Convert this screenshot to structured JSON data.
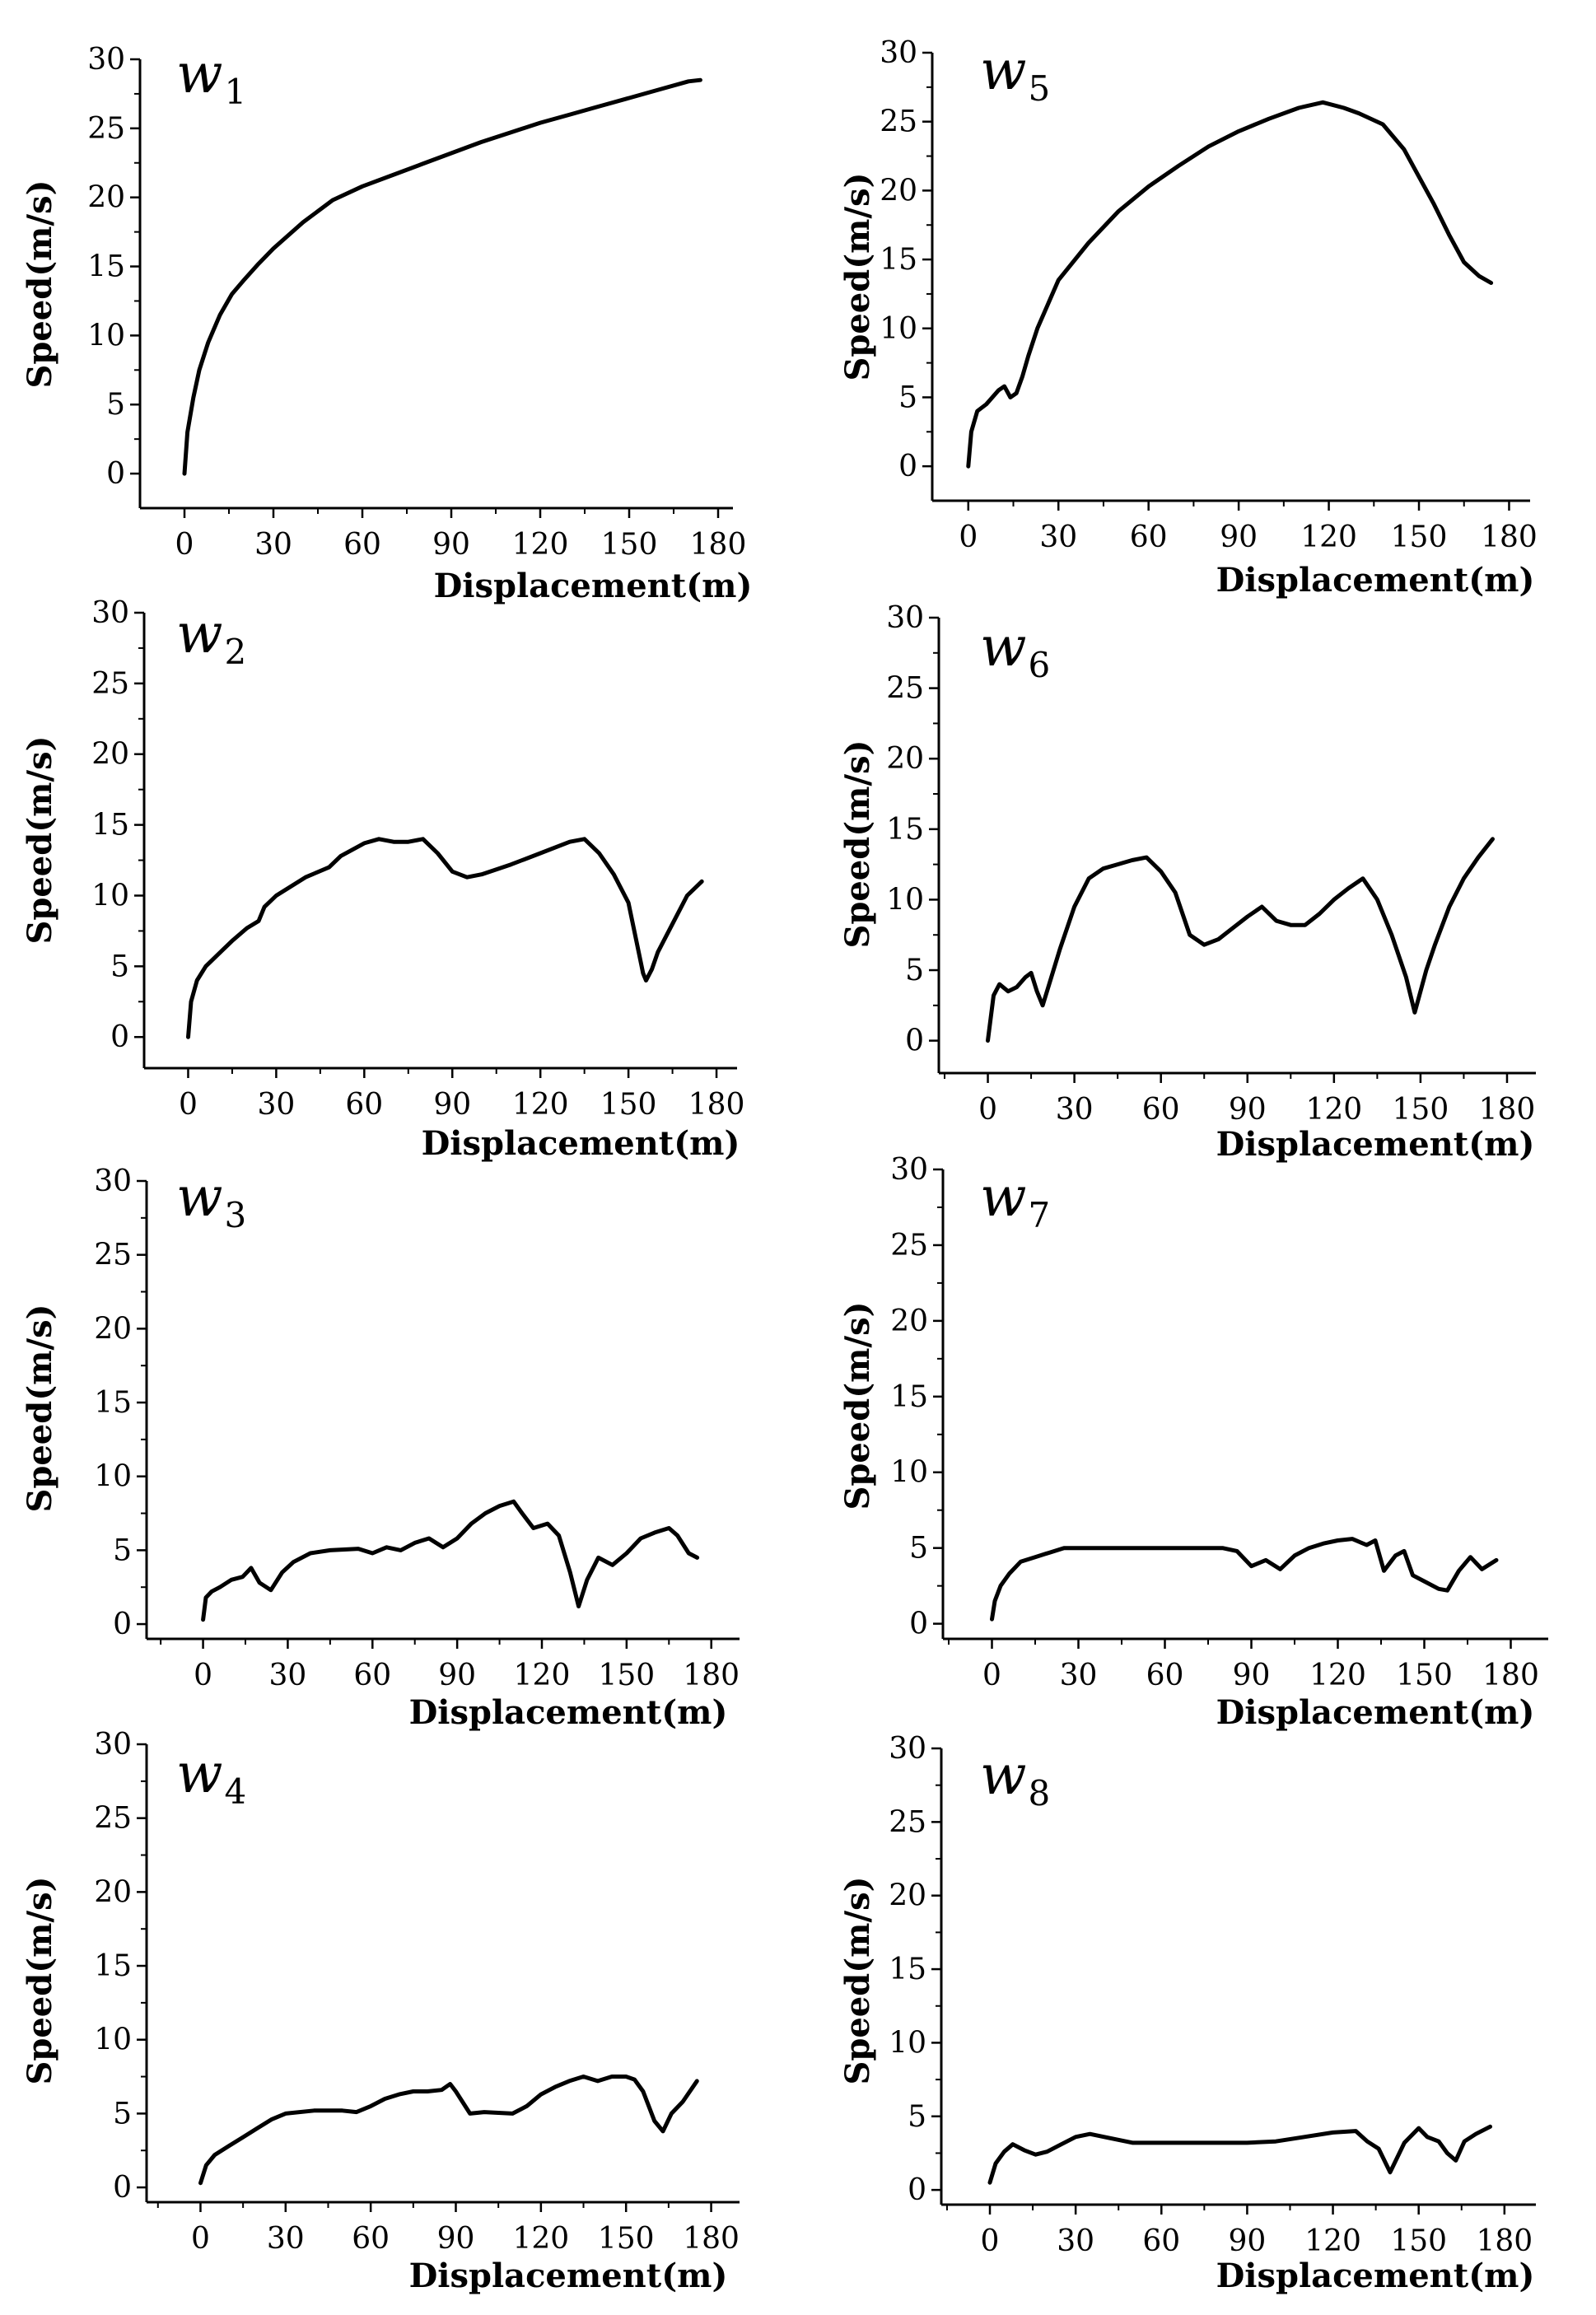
{
  "chart_data": [
    {
      "id": "w1",
      "type": "line",
      "title": "w",
      "title_sub": "1",
      "xlabel": "Displacement(m)",
      "ylabel": "Speed(m/s)",
      "xlim": [
        -15,
        185
      ],
      "ylim": [
        -2.5,
        30
      ],
      "xticks": [
        0,
        30,
        60,
        90,
        120,
        150,
        180
      ],
      "yticks": [
        0,
        5,
        10,
        15,
        20,
        25,
        30
      ],
      "series": [
        {
          "name": "w1",
          "x": [
            0,
            1,
            3,
            5,
            8,
            12,
            16,
            20,
            25,
            30,
            40,
            50,
            60,
            70,
            80,
            90,
            100,
            110,
            120,
            130,
            140,
            150,
            160,
            170,
            174
          ],
          "y": [
            0,
            3,
            5.5,
            7.5,
            9.5,
            11.5,
            13,
            14,
            15.2,
            16.3,
            18.2,
            19.8,
            20.8,
            21.6,
            22.4,
            23.2,
            24,
            24.7,
            25.4,
            26,
            26.6,
            27.2,
            27.8,
            28.4,
            28.5
          ]
        }
      ]
    },
    {
      "id": "w5",
      "type": "line",
      "title": "w",
      "title_sub": "5",
      "xlabel": "Displacement(m)",
      "ylabel": "Speed(m/s)",
      "xlim": [
        -12,
        187
      ],
      "ylim": [
        -2.5,
        30
      ],
      "xticks": [
        0,
        30,
        60,
        90,
        120,
        150,
        180
      ],
      "yticks": [
        0,
        5,
        10,
        15,
        20,
        25,
        30
      ],
      "series": [
        {
          "name": "w5",
          "x": [
            0,
            1,
            3,
            6,
            10,
            12,
            14,
            16,
            18,
            20,
            23,
            27,
            30,
            40,
            50,
            60,
            70,
            80,
            90,
            100,
            110,
            118,
            125,
            130,
            138,
            145,
            150,
            155,
            160,
            165,
            170,
            174
          ],
          "y": [
            0,
            2.5,
            4,
            4.5,
            5.5,
            5.8,
            5,
            5.3,
            6.5,
            8,
            10,
            12,
            13.5,
            16.2,
            18.5,
            20.3,
            21.8,
            23.2,
            24.3,
            25.2,
            26,
            26.4,
            26,
            25.6,
            24.8,
            23,
            21,
            19,
            16.8,
            14.8,
            13.8,
            13.3
          ]
        }
      ]
    },
    {
      "id": "w2",
      "type": "line",
      "title": "w",
      "title_sub": "2",
      "xlabel": "Displacement(m)",
      "ylabel": "Speed(m/s)",
      "xlim": [
        -15,
        187
      ],
      "ylim": [
        -2.2,
        30
      ],
      "xticks": [
        0,
        30,
        60,
        90,
        120,
        150,
        180
      ],
      "yticks": [
        0,
        5,
        10,
        15,
        20,
        25,
        30
      ],
      "series": [
        {
          "name": "w2",
          "x": [
            0,
            1,
            3,
            6,
            10,
            15,
            20,
            24,
            26,
            30,
            40,
            48,
            52,
            60,
            65,
            70,
            75,
            80,
            85,
            90,
            95,
            100,
            110,
            120,
            130,
            135,
            140,
            145,
            150,
            153,
            155,
            156,
            158,
            160,
            165,
            170,
            175
          ],
          "y": [
            0,
            2.5,
            4,
            5,
            5.8,
            6.8,
            7.7,
            8.2,
            9.2,
            10,
            11.3,
            12,
            12.8,
            13.7,
            14,
            13.8,
            13.8,
            14,
            13,
            11.7,
            11.3,
            11.5,
            12.2,
            13,
            13.8,
            14,
            13,
            11.5,
            9.5,
            6.5,
            4.5,
            4,
            4.8,
            6,
            8,
            10,
            11
          ]
        }
      ]
    },
    {
      "id": "w6",
      "type": "line",
      "title": "w",
      "title_sub": "6",
      "xlabel": "Displacement(m)",
      "ylabel": "Speed(m/s)",
      "xlim": [
        -17,
        190
      ],
      "ylim": [
        -2.3,
        30
      ],
      "xticks": [
        0,
        30,
        60,
        90,
        120,
        150,
        180
      ],
      "yticks": [
        0,
        5,
        10,
        15,
        20,
        25,
        30
      ],
      "series": [
        {
          "name": "w6",
          "x": [
            0,
            2,
            4,
            7,
            10,
            13,
            15,
            17,
            19,
            22,
            25,
            30,
            35,
            40,
            45,
            50,
            55,
            60,
            65,
            70,
            75,
            80,
            85,
            90,
            95,
            100,
            105,
            110,
            115,
            120,
            125,
            130,
            135,
            140,
            145,
            148,
            150,
            152,
            155,
            160,
            165,
            170,
            175
          ],
          "y": [
            0,
            3.2,
            4,
            3.5,
            3.8,
            4.5,
            4.8,
            3.5,
            2.5,
            4.5,
            6.5,
            9.5,
            11.5,
            12.2,
            12.5,
            12.8,
            13,
            12,
            10.5,
            7.5,
            6.8,
            7.2,
            8,
            8.8,
            9.5,
            8.5,
            8.2,
            8.2,
            9,
            10,
            10.8,
            11.5,
            10,
            7.5,
            4.5,
            2,
            3.5,
            5,
            6.8,
            9.5,
            11.5,
            13,
            14.3
          ]
        }
      ]
    },
    {
      "id": "w3",
      "type": "line",
      "title": "w",
      "title_sub": "3",
      "xlabel": "Displacement(m)",
      "ylabel": "Speed(m/s)",
      "xlim": [
        -20,
        190
      ],
      "ylim": [
        -1,
        30
      ],
      "xticks": [
        0,
        30,
        60,
        90,
        120,
        150,
        180
      ],
      "yticks": [
        0,
        5,
        10,
        15,
        20,
        25,
        30
      ],
      "series": [
        {
          "name": "w3",
          "x": [
            0,
            1,
            3,
            6,
            10,
            14,
            17,
            20,
            24,
            28,
            32,
            38,
            45,
            55,
            60,
            65,
            70,
            75,
            80,
            85,
            90,
            95,
            100,
            105,
            110,
            113,
            117,
            122,
            126,
            130,
            133,
            136,
            140,
            145,
            150,
            155,
            160,
            165,
            168,
            172,
            175
          ],
          "y": [
            0.3,
            1.8,
            2.2,
            2.5,
            3,
            3.2,
            3.8,
            2.8,
            2.3,
            3.5,
            4.2,
            4.8,
            5,
            5.1,
            4.8,
            5.2,
            5,
            5.5,
            5.8,
            5.2,
            5.8,
            6.8,
            7.5,
            8,
            8.3,
            7.5,
            6.5,
            6.8,
            6,
            3.5,
            1.2,
            3,
            4.5,
            4,
            4.8,
            5.8,
            6.2,
            6.5,
            6,
            4.8,
            4.5
          ]
        }
      ]
    },
    {
      "id": "w7",
      "type": "line",
      "title": "w",
      "title_sub": "7",
      "xlabel": "Displacement(m)",
      "ylabel": "Speed(m/s)",
      "xlim": [
        -17,
        193
      ],
      "ylim": [
        -1,
        30
      ],
      "xticks": [
        0,
        30,
        60,
        90,
        120,
        150,
        180
      ],
      "yticks": [
        0,
        5,
        10,
        15,
        20,
        25,
        30
      ],
      "series": [
        {
          "name": "w7",
          "x": [
            0,
            1,
            3,
            6,
            10,
            15,
            20,
            25,
            30,
            40,
            50,
            60,
            70,
            80,
            85,
            90,
            95,
            100,
            105,
            110,
            115,
            120,
            125,
            130,
            133,
            136,
            140,
            143,
            146,
            150,
            155,
            158,
            162,
            166,
            170,
            175
          ],
          "y": [
            0.3,
            1.5,
            2.5,
            3.3,
            4.1,
            4.4,
            4.7,
            5,
            5,
            5,
            5,
            5,
            5,
            5,
            4.8,
            3.8,
            4.2,
            3.6,
            4.5,
            5,
            5.3,
            5.5,
            5.6,
            5.2,
            5.5,
            3.5,
            4.5,
            4.8,
            3.2,
            2.8,
            2.3,
            2.2,
            3.5,
            4.4,
            3.6,
            4.2
          ]
        }
      ]
    },
    {
      "id": "w4",
      "type": "line",
      "title": "w",
      "title_sub": "4",
      "xlabel": "Displacement(m)",
      "ylabel": "Speed(m/s)",
      "xlim": [
        -19,
        190
      ],
      "ylim": [
        -1,
        30
      ],
      "xticks": [
        0,
        30,
        60,
        90,
        120,
        150,
        180
      ],
      "yticks": [
        0,
        5,
        10,
        15,
        20,
        25,
        30
      ],
      "series": [
        {
          "name": "w4",
          "x": [
            0,
            2,
            5,
            10,
            15,
            20,
            25,
            30,
            40,
            50,
            55,
            60,
            65,
            70,
            75,
            80,
            85,
            88,
            90,
            95,
            100,
            110,
            115,
            120,
            125,
            130,
            135,
            140,
            145,
            150,
            153,
            156,
            160,
            163,
            166,
            170,
            175
          ],
          "y": [
            0.3,
            1.5,
            2.2,
            2.8,
            3.4,
            4,
            4.6,
            5,
            5.2,
            5.2,
            5.1,
            5.5,
            6,
            6.3,
            6.5,
            6.5,
            6.6,
            7,
            6.5,
            5,
            5.1,
            5,
            5.5,
            6.3,
            6.8,
            7.2,
            7.5,
            7.2,
            7.5,
            7.5,
            7.3,
            6.5,
            4.5,
            3.8,
            5,
            5.8,
            7.2
          ]
        }
      ]
    },
    {
      "id": "w8",
      "type": "line",
      "title": "w",
      "title_sub": "8",
      "xlabel": "Displacement(m)",
      "ylabel": "Speed(m/s)",
      "xlim": [
        -17,
        191
      ],
      "ylim": [
        -1,
        30
      ],
      "xticks": [
        0,
        30,
        60,
        90,
        120,
        150,
        180
      ],
      "yticks": [
        0,
        5,
        10,
        15,
        20,
        25,
        30
      ],
      "series": [
        {
          "name": "w8",
          "x": [
            0,
            2,
            5,
            8,
            12,
            16,
            20,
            25,
            30,
            35,
            40,
            50,
            60,
            70,
            80,
            90,
            100,
            110,
            120,
            128,
            132,
            136,
            140,
            145,
            150,
            153,
            157,
            160,
            163,
            166,
            170,
            175
          ],
          "y": [
            0.5,
            1.8,
            2.6,
            3.1,
            2.7,
            2.4,
            2.6,
            3.1,
            3.6,
            3.8,
            3.6,
            3.2,
            3.2,
            3.2,
            3.2,
            3.2,
            3.3,
            3.6,
            3.9,
            4,
            3.3,
            2.8,
            1.2,
            3.2,
            4.2,
            3.6,
            3.3,
            2.5,
            2,
            3.3,
            3.8,
            4.3
          ]
        }
      ]
    }
  ]
}
